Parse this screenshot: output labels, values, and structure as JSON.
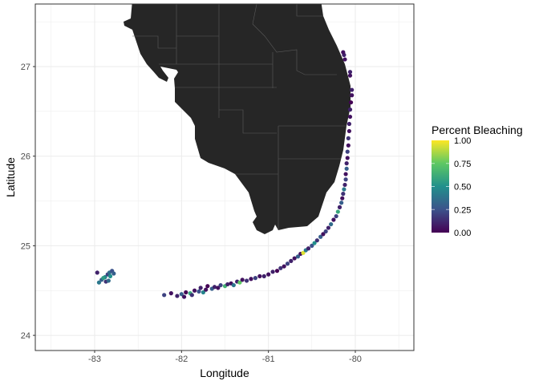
{
  "chart_data": {
    "type": "scatter",
    "xlabel": "Longitude",
    "ylabel": "Latitude",
    "xlim": [
      -83.68,
      -79.33
    ],
    "ylim": [
      23.83,
      27.7
    ],
    "x_ticks": [
      -83,
      -82,
      -81,
      -80
    ],
    "x_tick_labels": [
      "-83",
      "-82",
      "-81",
      "-80"
    ],
    "y_ticks": [
      24,
      25,
      26,
      27
    ],
    "y_tick_labels": [
      "24",
      "25",
      "26",
      "27"
    ],
    "grid": true,
    "basemap": "South Florida counties (dark fill)",
    "land_color": "#262626",
    "legend": {
      "title": "Percent Bleaching",
      "placement": "right",
      "type": "colorbar",
      "palette": "viridis",
      "range": [
        0,
        1
      ],
      "tick_labels": [
        "1.00",
        "0.75",
        "0.50",
        "0.25",
        "0.00"
      ]
    },
    "points_columns": [
      "lon",
      "lat",
      "percent_bleaching"
    ],
    "points": [
      [
        -82.92,
        24.62,
        0.3
      ],
      [
        -82.88,
        24.65,
        0.45
      ],
      [
        -82.85,
        24.68,
        0.2
      ],
      [
        -82.83,
        24.7,
        0.35
      ],
      [
        -82.8,
        24.72,
        0.25
      ],
      [
        -82.82,
        24.66,
        0.5
      ],
      [
        -82.87,
        24.6,
        0.15
      ],
      [
        -82.95,
        24.59,
        0.4
      ],
      [
        -82.9,
        24.64,
        0.55
      ],
      [
        -82.78,
        24.69,
        0.3
      ],
      [
        -82.97,
        24.7,
        0.1
      ],
      [
        -82.84,
        24.61,
        0.35
      ],
      [
        -82.2,
        24.45,
        0.2
      ],
      [
        -82.12,
        24.47,
        0.05
      ],
      [
        -82.05,
        24.44,
        0.1
      ],
      [
        -82.0,
        24.46,
        0.3
      ],
      [
        -81.97,
        24.43,
        0.05
      ],
      [
        -81.95,
        24.48,
        0.0
      ],
      [
        -81.9,
        24.47,
        0.6
      ],
      [
        -81.88,
        24.45,
        0.15
      ],
      [
        -81.85,
        24.5,
        0.05
      ],
      [
        -81.8,
        24.49,
        0.25
      ],
      [
        -81.78,
        24.53,
        0.1
      ],
      [
        -81.75,
        24.48,
        0.45
      ],
      [
        -81.72,
        24.51,
        0.05
      ],
      [
        -81.7,
        24.55,
        0.0
      ],
      [
        -81.65,
        24.52,
        0.3
      ],
      [
        -81.62,
        24.54,
        0.1
      ],
      [
        -81.58,
        24.53,
        0.05
      ],
      [
        -81.55,
        24.56,
        0.2
      ],
      [
        -81.5,
        24.55,
        0.65
      ],
      [
        -81.47,
        24.57,
        0.1
      ],
      [
        -81.43,
        24.58,
        0.05
      ],
      [
        -81.4,
        24.56,
        0.4
      ],
      [
        -81.36,
        24.6,
        0.1
      ],
      [
        -81.33,
        24.59,
        0.75
      ],
      [
        -81.3,
        24.62,
        0.05
      ],
      [
        -81.25,
        24.61,
        0.15
      ],
      [
        -81.2,
        24.63,
        0.05
      ],
      [
        -81.15,
        24.64,
        0.2
      ],
      [
        -81.1,
        24.66,
        0.05
      ],
      [
        -81.05,
        24.66,
        0.1
      ],
      [
        -81.0,
        24.68,
        0.05
      ],
      [
        -80.95,
        24.71,
        0.1
      ],
      [
        -80.9,
        24.72,
        0.0
      ],
      [
        -80.86,
        24.75,
        0.15
      ],
      [
        -80.82,
        24.77,
        0.05
      ],
      [
        -80.78,
        24.8,
        0.2
      ],
      [
        -80.74,
        24.83,
        0.1
      ],
      [
        -80.7,
        24.86,
        0.05
      ],
      [
        -80.66,
        24.88,
        0.3
      ],
      [
        -80.63,
        24.91,
        0.05
      ],
      [
        -80.6,
        24.92,
        0.95
      ],
      [
        -80.57,
        24.95,
        0.4
      ],
      [
        -80.54,
        24.97,
        0.1
      ],
      [
        -80.5,
        25.0,
        0.25
      ],
      [
        -80.47,
        25.03,
        0.5
      ],
      [
        -80.44,
        25.06,
        0.15
      ],
      [
        -80.4,
        25.1,
        0.3
      ],
      [
        -80.37,
        25.13,
        0.05
      ],
      [
        -80.34,
        25.16,
        0.2
      ],
      [
        -80.31,
        25.2,
        0.1
      ],
      [
        -80.28,
        25.24,
        0.35
      ],
      [
        -80.25,
        25.29,
        0.05
      ],
      [
        -80.22,
        25.33,
        0.2
      ],
      [
        -80.2,
        25.38,
        0.6
      ],
      [
        -80.18,
        25.43,
        0.1
      ],
      [
        -80.16,
        25.48,
        0.3
      ],
      [
        -80.15,
        25.53,
        0.05
      ],
      [
        -80.14,
        25.58,
        0.15
      ],
      [
        -80.13,
        25.63,
        0.4
      ],
      [
        -80.12,
        25.68,
        0.1
      ],
      [
        -80.11,
        25.74,
        0.2
      ],
      [
        -80.11,
        25.8,
        0.05
      ],
      [
        -80.1,
        25.86,
        0.3
      ],
      [
        -80.1,
        25.92,
        0.1
      ],
      [
        -80.09,
        25.98,
        0.05
      ],
      [
        -80.09,
        26.05,
        0.2
      ],
      [
        -80.08,
        26.12,
        0.05
      ],
      [
        -80.08,
        26.2,
        0.15
      ],
      [
        -80.07,
        26.28,
        0.05
      ],
      [
        -80.07,
        26.36,
        0.1
      ],
      [
        -80.06,
        26.44,
        0.05
      ],
      [
        -80.06,
        26.52,
        0.1
      ],
      [
        -80.05,
        26.6,
        0.0
      ],
      [
        -80.04,
        26.68,
        0.05
      ],
      [
        -80.04,
        26.74,
        0.1
      ],
      [
        -80.06,
        26.9,
        0.05
      ],
      [
        -80.06,
        26.94,
        0.1
      ],
      [
        -80.12,
        27.08,
        0.05
      ],
      [
        -80.13,
        27.13,
        0.1
      ],
      [
        -80.14,
        27.16,
        0.05
      ]
    ]
  }
}
